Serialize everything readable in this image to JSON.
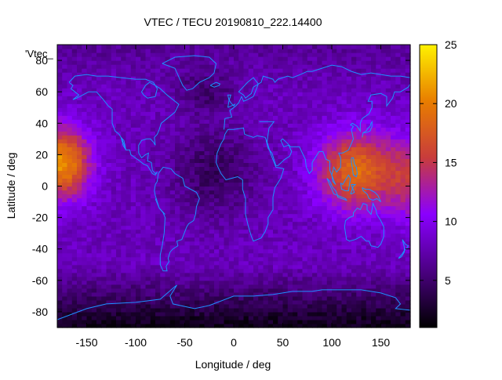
{
  "chart_data": {
    "type": "heatmap",
    "title": "VTEC / TECU 20190810_222.14400",
    "xlabel": "Longitude / deg",
    "ylabel": "Latitude / deg",
    "series_label": "'Vtec_",
    "xlim": [
      -180,
      180
    ],
    "ylim": [
      -90,
      90
    ],
    "x_ticks": [
      -150,
      -100,
      -50,
      0,
      50,
      100,
      150
    ],
    "y_ticks": [
      -80,
      -60,
      -40,
      -20,
      0,
      20,
      40,
      60,
      80
    ],
    "colorbar": {
      "range": [
        1,
        25
      ],
      "ticks": [
        5,
        10,
        15,
        20,
        25
      ],
      "palette": [
        "#000000",
        "#4b0082",
        "#8a00ff",
        "#c83c3c",
        "#e87d00",
        "#fff200"
      ]
    },
    "grid_resolution": {
      "lon_step_deg": 5,
      "lat_step_deg": 2.5
    },
    "features": {
      "equatorial_anomaly_pacific": {
        "center_lon": -175,
        "center_lat": 15,
        "peak_tecu": 21
      },
      "equatorial_anomaly_asia": {
        "center_lon": 125,
        "center_lat": 10,
        "peak_tecu": 19
      },
      "background_midlat_tecu": 8,
      "polar_south_tecu": 2
    },
    "grid": false,
    "legend": "colorbar-right"
  },
  "colors": {
    "coastline": "#1e90ff",
    "axes": "#000000"
  }
}
